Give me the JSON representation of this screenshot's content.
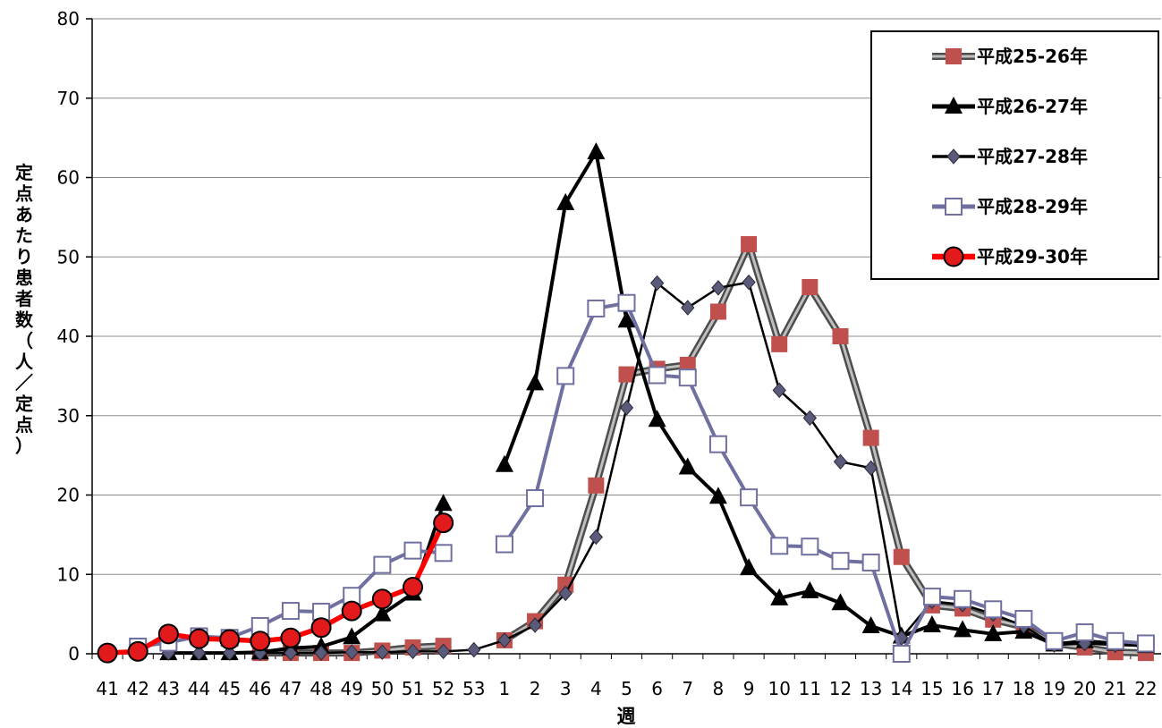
{
  "chart_data": {
    "type": "line",
    "title": "",
    "xlabel": "週",
    "ylabel": "定点あたり患者数（人／定点）",
    "ylim": [
      0,
      80
    ],
    "yticks": [
      "0",
      "10",
      "20",
      "30",
      "40",
      "50",
      "60",
      "70",
      "80"
    ],
    "categories": [
      "41",
      "42",
      "43",
      "44",
      "45",
      "46",
      "47",
      "48",
      "49",
      "50",
      "51",
      "52",
      "53",
      "1",
      "2",
      "3",
      "4",
      "5",
      "6",
      "7",
      "8",
      "9",
      "10",
      "11",
      "12",
      "13",
      "14",
      "15",
      "16",
      "17",
      "18",
      "19",
      "20",
      "21",
      "22"
    ],
    "grid": true,
    "legend_position": "top-right",
    "series": [
      {
        "name": "平成25-26年",
        "color": "#c0504d",
        "line_color": "#7f7f7f",
        "marker": "square-filled",
        "values": [
          null,
          null,
          null,
          null,
          null,
          0.1,
          0.1,
          0.1,
          0.1,
          0.4,
          0.8,
          1.0,
          null,
          1.7,
          4.1,
          8.7,
          21.2,
          35.2,
          35.9,
          36.4,
          43.1,
          51.6,
          39.0,
          46.2,
          40.0,
          27.2,
          12.2,
          6.1,
          5.7,
          4.3,
          3.4,
          1.3,
          0.8,
          0.2,
          0.1
        ]
      },
      {
        "name": "平成26-27年",
        "color": "#000000",
        "line_color": "#000000",
        "marker": "triangle",
        "values": [
          null,
          null,
          0.1,
          0.1,
          0.1,
          0.2,
          0.7,
          0.9,
          2.1,
          5.0,
          7.6,
          18.9,
          null,
          23.8,
          34.1,
          56.8,
          63.2,
          42.0,
          29.5,
          23.5,
          19.8,
          10.8,
          7.0,
          7.9,
          6.4,
          3.5,
          2.2,
          3.6,
          3.0,
          2.5,
          2.8,
          1.2,
          1.6,
          1.3,
          1.0
        ]
      },
      {
        "name": "平成27-28年",
        "color": "#5a5a7a",
        "line_color": "#000000",
        "marker": "diamond",
        "values": [
          null,
          null,
          0.1,
          0.1,
          0.1,
          0.1,
          0.1,
          0.1,
          0.2,
          0.2,
          0.3,
          0.3,
          0.5,
          1.7,
          3.6,
          7.6,
          14.7,
          31.0,
          46.7,
          43.6,
          46.1,
          46.8,
          33.2,
          29.7,
          24.2,
          23.4,
          2.0,
          6.6,
          6.2,
          5.0,
          3.5,
          1.1,
          1.3,
          1.1,
          1.0
        ]
      },
      {
        "name": "平成28-29年",
        "color": "#7070a0",
        "line_color": "#7070a0",
        "marker": "square-open",
        "values": [
          null,
          0.9,
          1.4,
          2.2,
          2.0,
          3.5,
          5.4,
          5.3,
          7.3,
          11.2,
          13.0,
          12.7,
          null,
          13.8,
          19.6,
          35.0,
          43.5,
          44.2,
          35.1,
          34.8,
          26.4,
          19.7,
          13.6,
          13.5,
          11.7,
          11.5,
          0.0,
          7.2,
          6.9,
          5.6,
          4.4,
          1.6,
          2.7,
          1.6,
          1.3
        ]
      },
      {
        "name": "平成29-30年",
        "color": "#e31a1c",
        "line_color": "#ff0000",
        "marker": "circle",
        "values": [
          0.1,
          0.3,
          2.5,
          1.9,
          1.8,
          1.6,
          2.0,
          3.3,
          5.4,
          6.9,
          8.4,
          16.5,
          null,
          null,
          null,
          null,
          null,
          null,
          null,
          null,
          null,
          null,
          null,
          null,
          null,
          null,
          null,
          null,
          null,
          null,
          null,
          null,
          null,
          null,
          null
        ]
      }
    ]
  }
}
